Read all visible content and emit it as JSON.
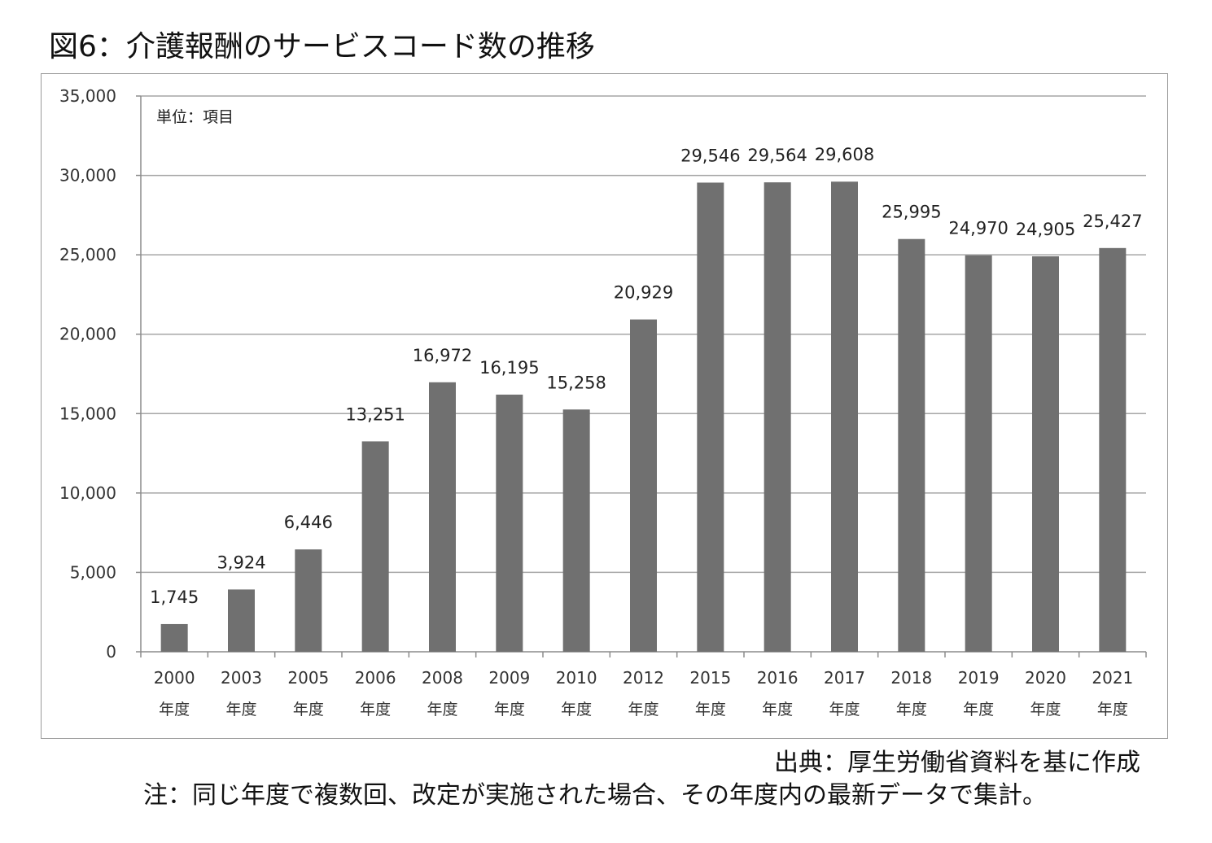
{
  "title": "図6：介護報酬のサービスコード数の推移",
  "source": "出典：厚生労働省資料を基に作成",
  "note": "注：同じ年度で複数回、改定が実施された場合、その年度内の最新データで集計。",
  "chart_data": {
    "type": "bar",
    "unit_label": "単位：項目",
    "categories": [
      "2000",
      "2003",
      "2005",
      "2006",
      "2008",
      "2009",
      "2010",
      "2012",
      "2015",
      "2016",
      "2017",
      "2018",
      "2019",
      "2020",
      "2021"
    ],
    "category_suffix": "年度",
    "values": [
      1745,
      3924,
      6446,
      13251,
      16972,
      16195,
      15258,
      20929,
      29546,
      29564,
      29608,
      25995,
      24970,
      24905,
      25427
    ],
    "value_labels": [
      "1,745",
      "3,924",
      "6,446",
      "13,251",
      "16,972",
      "16,195",
      "15,258",
      "20,929",
      "29,546",
      "29,564",
      "29,608",
      "25,995",
      "24,970",
      "24,905",
      "25,427"
    ],
    "yticks": [
      "0",
      "5,000",
      "10,000",
      "15,000",
      "20,000",
      "25,000",
      "30,000",
      "35,000"
    ],
    "ylim": [
      0,
      35000
    ],
    "ystep": 5000,
    "grid": true,
    "bar_color": "#707070",
    "grid_color": "#a6a6a6"
  }
}
